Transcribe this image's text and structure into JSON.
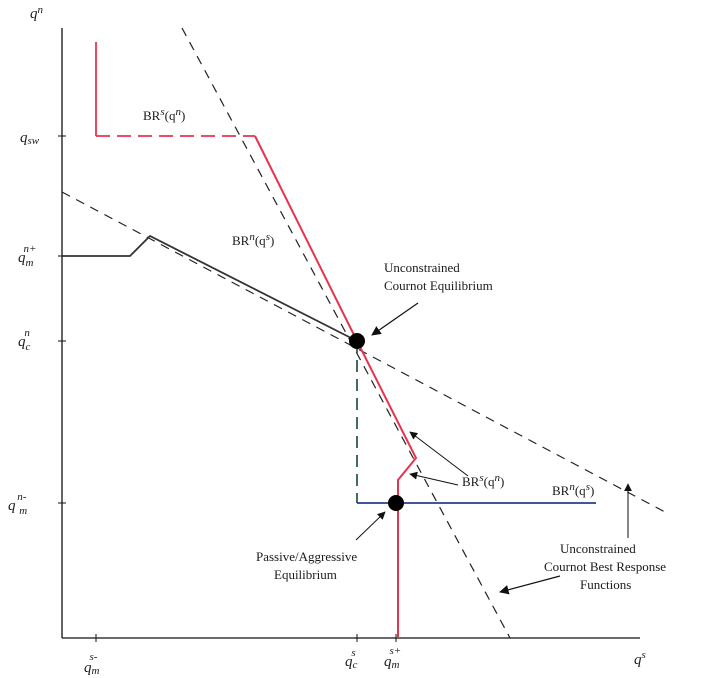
{
  "axes": {
    "y_label": "qn",
    "x_label": "qs"
  },
  "y_ticks": {
    "q_sw": "qsw",
    "q_m_n_plus": {
      "base": "q",
      "sub": "m",
      "sup": "n+"
    },
    "q_c_n": {
      "base": "q",
      "sub": "c",
      "sup": "n"
    },
    "q_m_n_minus": {
      "base": "q ",
      "sub": "m",
      "sup": "n-"
    }
  },
  "x_ticks": {
    "q_m_s_minus": {
      "base": "q",
      "sub": "m",
      "sup": "s-"
    },
    "q_c_s": "qcs",
    "q_m_s_plus": {
      "base": "q",
      "sub": "m",
      "sup": "s+"
    }
  },
  "curve_labels": {
    "br_s_top": {
      "base": "BR",
      "sup": "s",
      "arg": "(q",
      "arg_sup": "n",
      "close": ")"
    },
    "br_n_left": {
      "base": "BR",
      "sup": "n",
      "arg": "(q",
      "arg_sup": "s",
      "close": ")"
    },
    "br_s_right": {
      "base": "BR",
      "sup": "s",
      "arg": "(q",
      "arg_sup": "n",
      "close": ")"
    },
    "br_n_right": {
      "base": "BR",
      "sup": "n",
      "arg": "(q",
      "arg_sup": "s",
      "close": ")"
    }
  },
  "annotations": {
    "unconstrained_eq": [
      "Unconstrained",
      "Cournot Equilibrium"
    ],
    "passive_eq": [
      "Passive/Aggressive",
      "Equilibrium"
    ],
    "unconstrained_br": [
      "Unconstrained",
      "Cournot Best Response",
      "Functions"
    ]
  },
  "colors": {
    "br_s": "#e8334f",
    "br_n_left": "#333333",
    "br_n_right": "#2a3d8f",
    "dashed": "#222222",
    "dashed_teal": "#2f5a57"
  }
}
